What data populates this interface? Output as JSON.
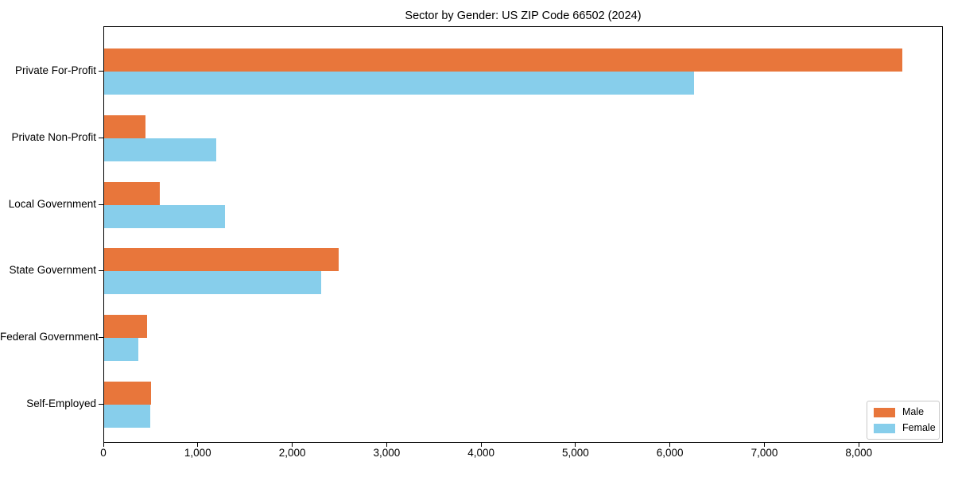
{
  "chart_data": {
    "type": "bar",
    "orientation": "horizontal",
    "title": "Sector by Gender: US ZIP Code 66502 (2024)",
    "categories": [
      "Private For-Profit",
      "Private Non-Profit",
      "Local Government",
      "State Government",
      "Federal Government",
      "Self-Employed"
    ],
    "series": [
      {
        "name": "Male",
        "color": "#e8763b",
        "values": [
          8450,
          440,
          590,
          2480,
          450,
          500
        ]
      },
      {
        "name": "Female",
        "color": "#87ceeb",
        "values": [
          6250,
          1190,
          1275,
          2300,
          365,
          485
        ]
      }
    ],
    "xlabel": "",
    "ylabel": "",
    "xlim": [
      0,
      8873
    ],
    "xticks": [
      0,
      1000,
      2000,
      3000,
      4000,
      5000,
      6000,
      7000,
      8000
    ],
    "grid": false,
    "legend_position": "lower right",
    "frame_color": "#000000",
    "background_color": "#ffffff",
    "text_color": "#000000"
  }
}
